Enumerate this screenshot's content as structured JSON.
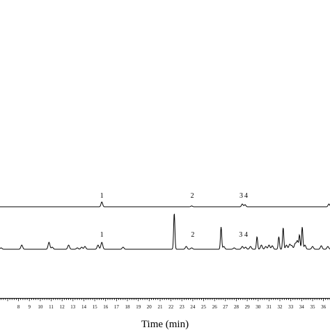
{
  "chart_data": {
    "type": "line",
    "title": "",
    "xlabel": "Time (min)",
    "ylabel": "",
    "xlim": [
      6.3,
      36.6
    ],
    "x_ticks": [
      8,
      9,
      10,
      11,
      12,
      13,
      14,
      15,
      16,
      17,
      18,
      19,
      20,
      21,
      22,
      23,
      24,
      25,
      26,
      27,
      28,
      29,
      30,
      31,
      32,
      33,
      34,
      35,
      36
    ],
    "tick_labels": [
      "8",
      "9",
      "10",
      "11",
      "12",
      "13",
      "14",
      "15",
      "16",
      "17",
      "18",
      "19",
      "20",
      "21",
      "22",
      "23",
      "24",
      "25",
      "26",
      "27",
      "28",
      "29",
      "30",
      "31",
      "32",
      "33",
      "34",
      "35",
      "36"
    ],
    "grid": false,
    "legend": "none",
    "line_color": "#000000",
    "series": [
      {
        "peaks": [
          {
            "t": 15.65,
            "h": 7
          },
          {
            "t": 23.9,
            "h": 1.2
          },
          {
            "t": 28.55,
            "h": 4
          },
          {
            "t": 28.8,
            "h": 3
          },
          {
            "t": 36.5,
            "h": 4
          }
        ],
        "labels": [
          {
            "text": "1",
            "t": 15.65
          },
          {
            "text": "2",
            "t": 23.95
          },
          {
            "text": "3",
            "t": 28.45
          },
          {
            "text": "4",
            "t": 28.9
          }
        ]
      },
      {
        "peaks": [
          {
            "t": 6.4,
            "h": 2
          },
          {
            "t": 8.3,
            "h": 6
          },
          {
            "t": 10.8,
            "h": 10
          },
          {
            "t": 11.1,
            "h": 3
          },
          {
            "t": 12.6,
            "h": 6
          },
          {
            "t": 13.4,
            "h": 2
          },
          {
            "t": 13.8,
            "h": 3
          },
          {
            "t": 14.1,
            "h": 4
          },
          {
            "t": 15.3,
            "h": 6
          },
          {
            "t": 15.65,
            "h": 10
          },
          {
            "t": 17.6,
            "h": 3
          },
          {
            "t": 22.3,
            "h": 52
          },
          {
            "t": 23.4,
            "h": 4
          },
          {
            "t": 23.9,
            "h": 2
          },
          {
            "t": 26.6,
            "h": 32
          },
          {
            "t": 26.85,
            "h": 4
          },
          {
            "t": 27.8,
            "h": 2
          },
          {
            "t": 28.55,
            "h": 4
          },
          {
            "t": 28.85,
            "h": 3
          },
          {
            "t": 29.3,
            "h": 4
          },
          {
            "t": 29.9,
            "h": 18
          },
          {
            "t": 30.3,
            "h": 6
          },
          {
            "t": 30.7,
            "h": 4
          },
          {
            "t": 31.0,
            "h": 6
          },
          {
            "t": 31.3,
            "h": 5
          },
          {
            "t": 31.9,
            "h": 18
          },
          {
            "t": 32.3,
            "h": 31
          },
          {
            "t": 32.6,
            "h": 6
          },
          {
            "t": 32.9,
            "h": 7
          },
          {
            "t": 33.1,
            "h": 5
          },
          {
            "t": 33.4,
            "h": 8
          },
          {
            "t": 33.6,
            "h": 12
          },
          {
            "t": 33.8,
            "h": 20
          },
          {
            "t": 34.05,
            "h": 32
          },
          {
            "t": 34.3,
            "h": 6
          },
          {
            "t": 35.0,
            "h": 4
          },
          {
            "t": 35.8,
            "h": 5
          },
          {
            "t": 36.4,
            "h": 4
          }
        ],
        "labels": [
          {
            "text": "1",
            "t": 15.65
          },
          {
            "text": "2",
            "t": 24.0
          },
          {
            "text": "3",
            "t": 28.4
          },
          {
            "text": "4",
            "t": 28.9
          }
        ]
      }
    ]
  }
}
